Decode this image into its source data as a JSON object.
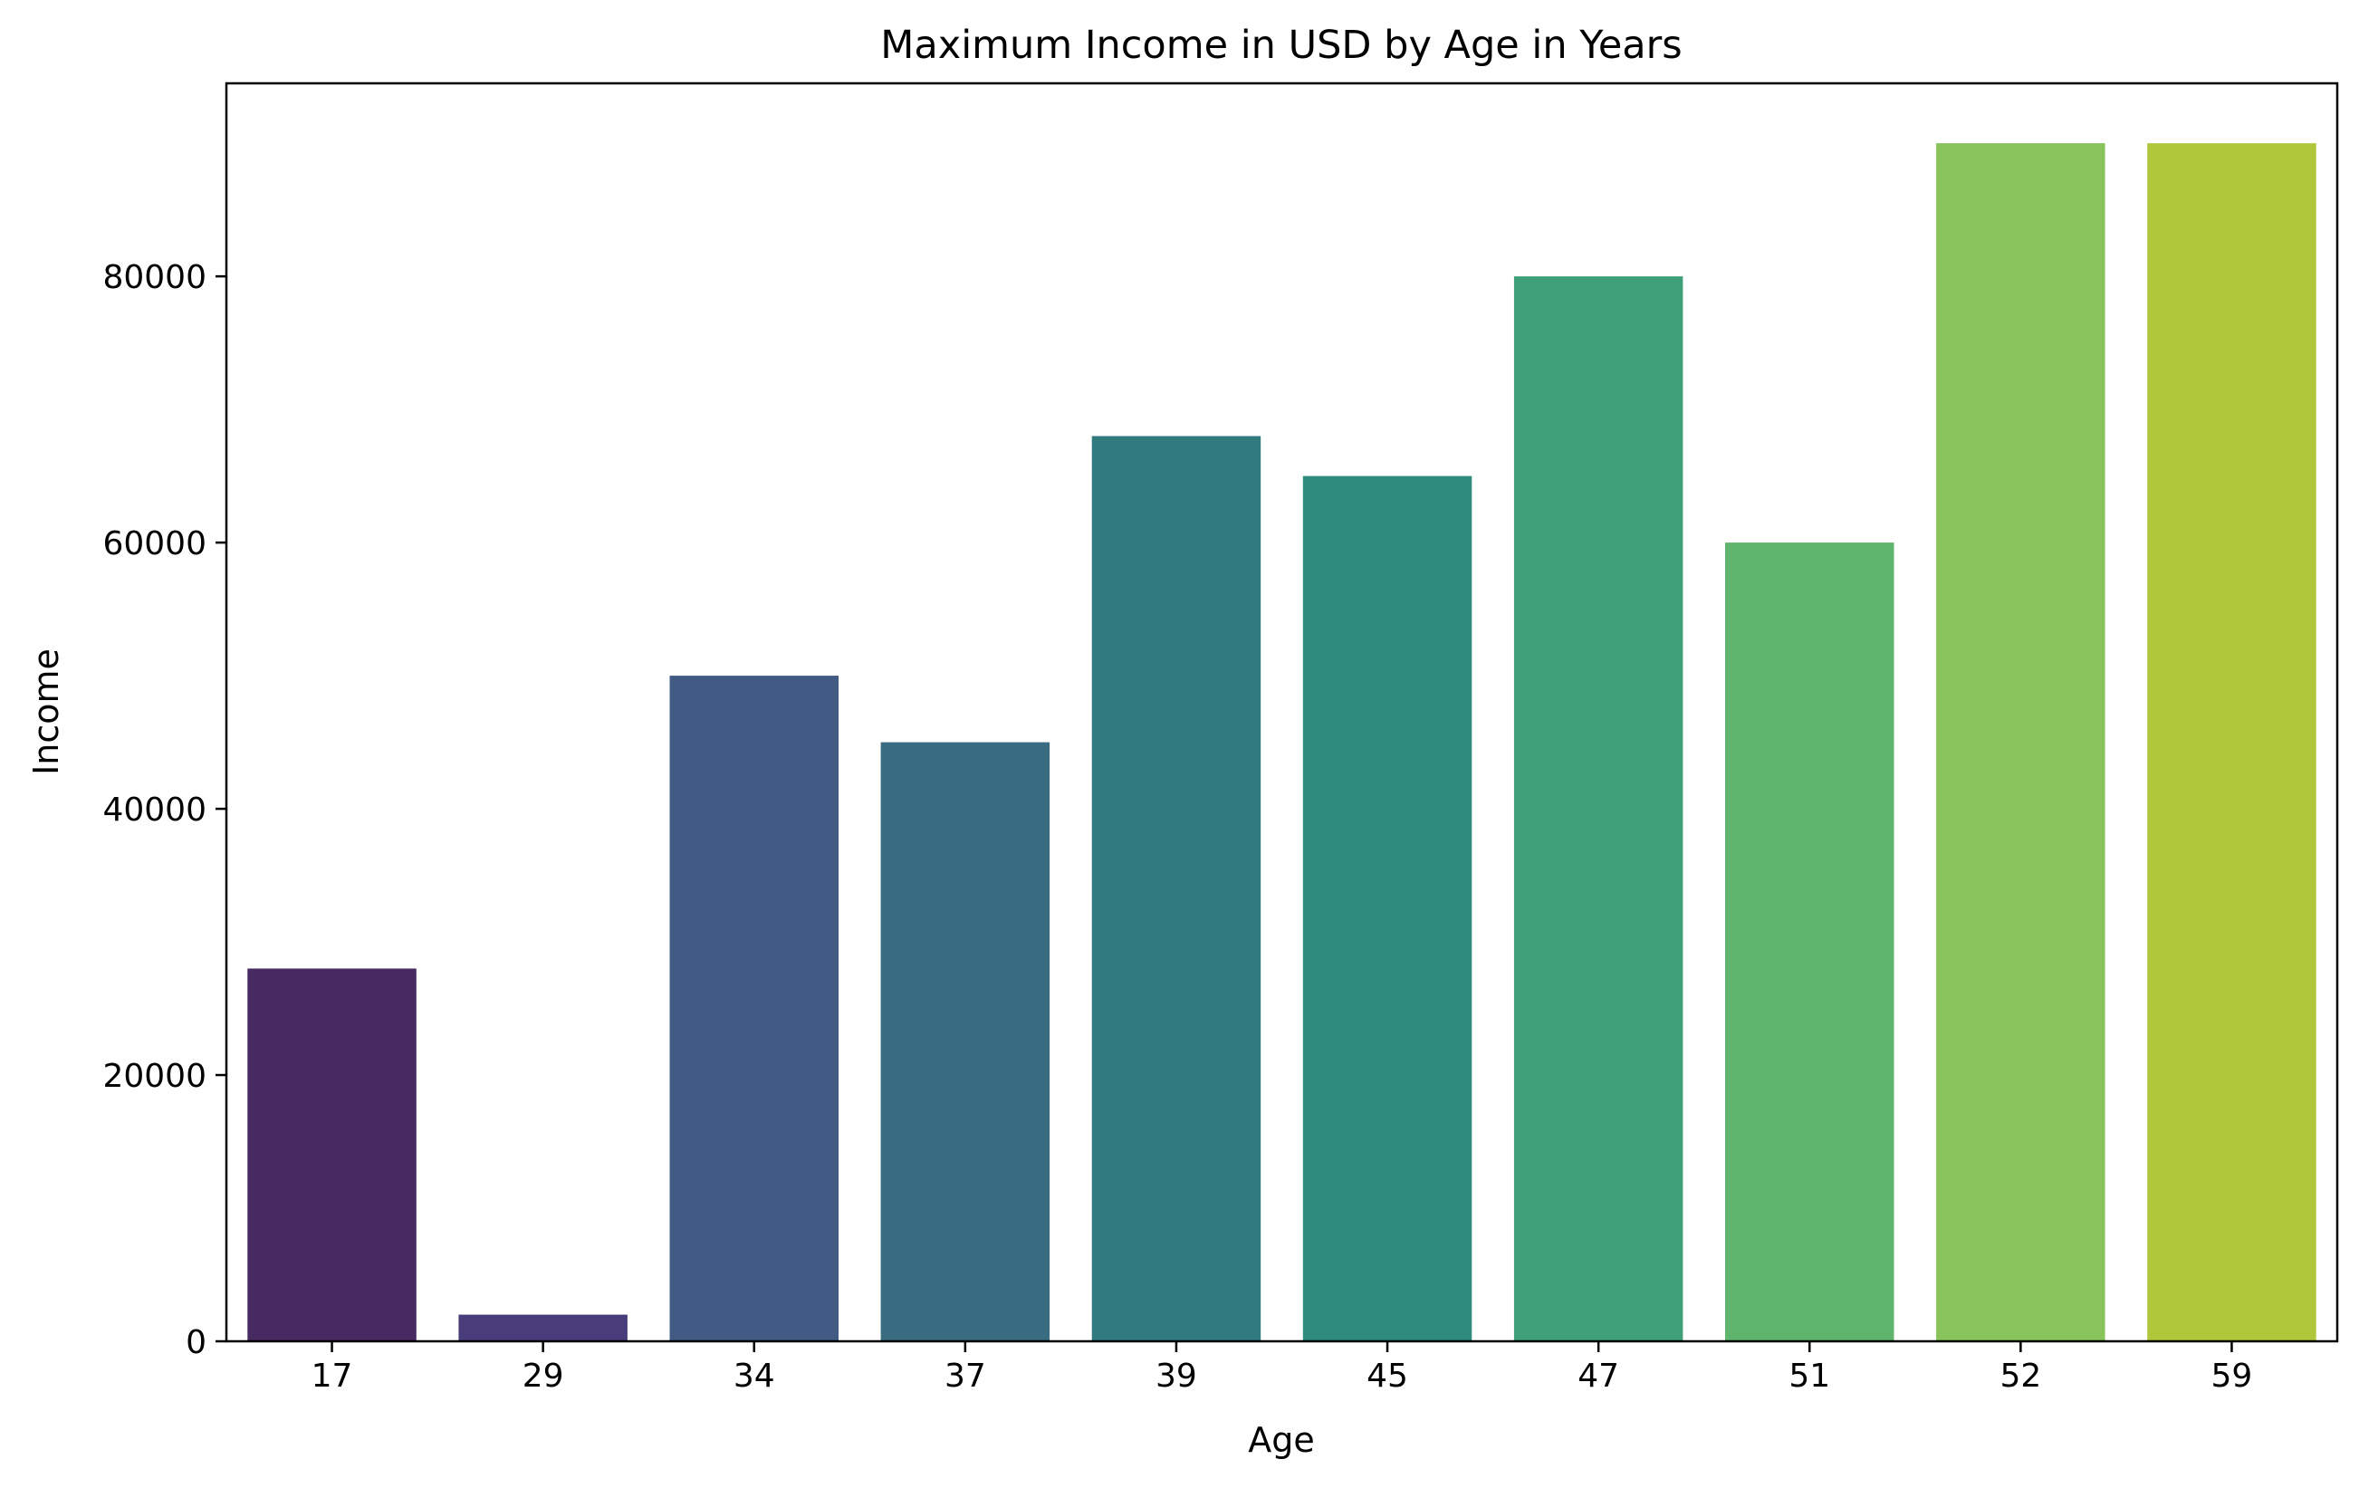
{
  "chart_data": {
    "type": "bar",
    "title": "Maximum Income in USD by Age in Years",
    "xlabel": "Age",
    "ylabel": "Income",
    "categories": [
      "17",
      "29",
      "34",
      "37",
      "39",
      "45",
      "47",
      "51",
      "52",
      "59"
    ],
    "values": [
      28000,
      2000,
      50000,
      45000,
      68000,
      65000,
      80000,
      60000,
      90000,
      90000
    ],
    "colors": [
      "#482a63",
      "#483d7a",
      "#425b85",
      "#3a6c81",
      "#317a80",
      "#2e8b7e",
      "#3e9f78",
      "#5fb46e",
      "#88c35c",
      "#b0c73b"
    ],
    "yticks": [
      "0",
      "20000",
      "40000",
      "60000",
      "80000"
    ],
    "ylim": [
      0,
      94500
    ],
    "grid": false,
    "legend": false
  }
}
